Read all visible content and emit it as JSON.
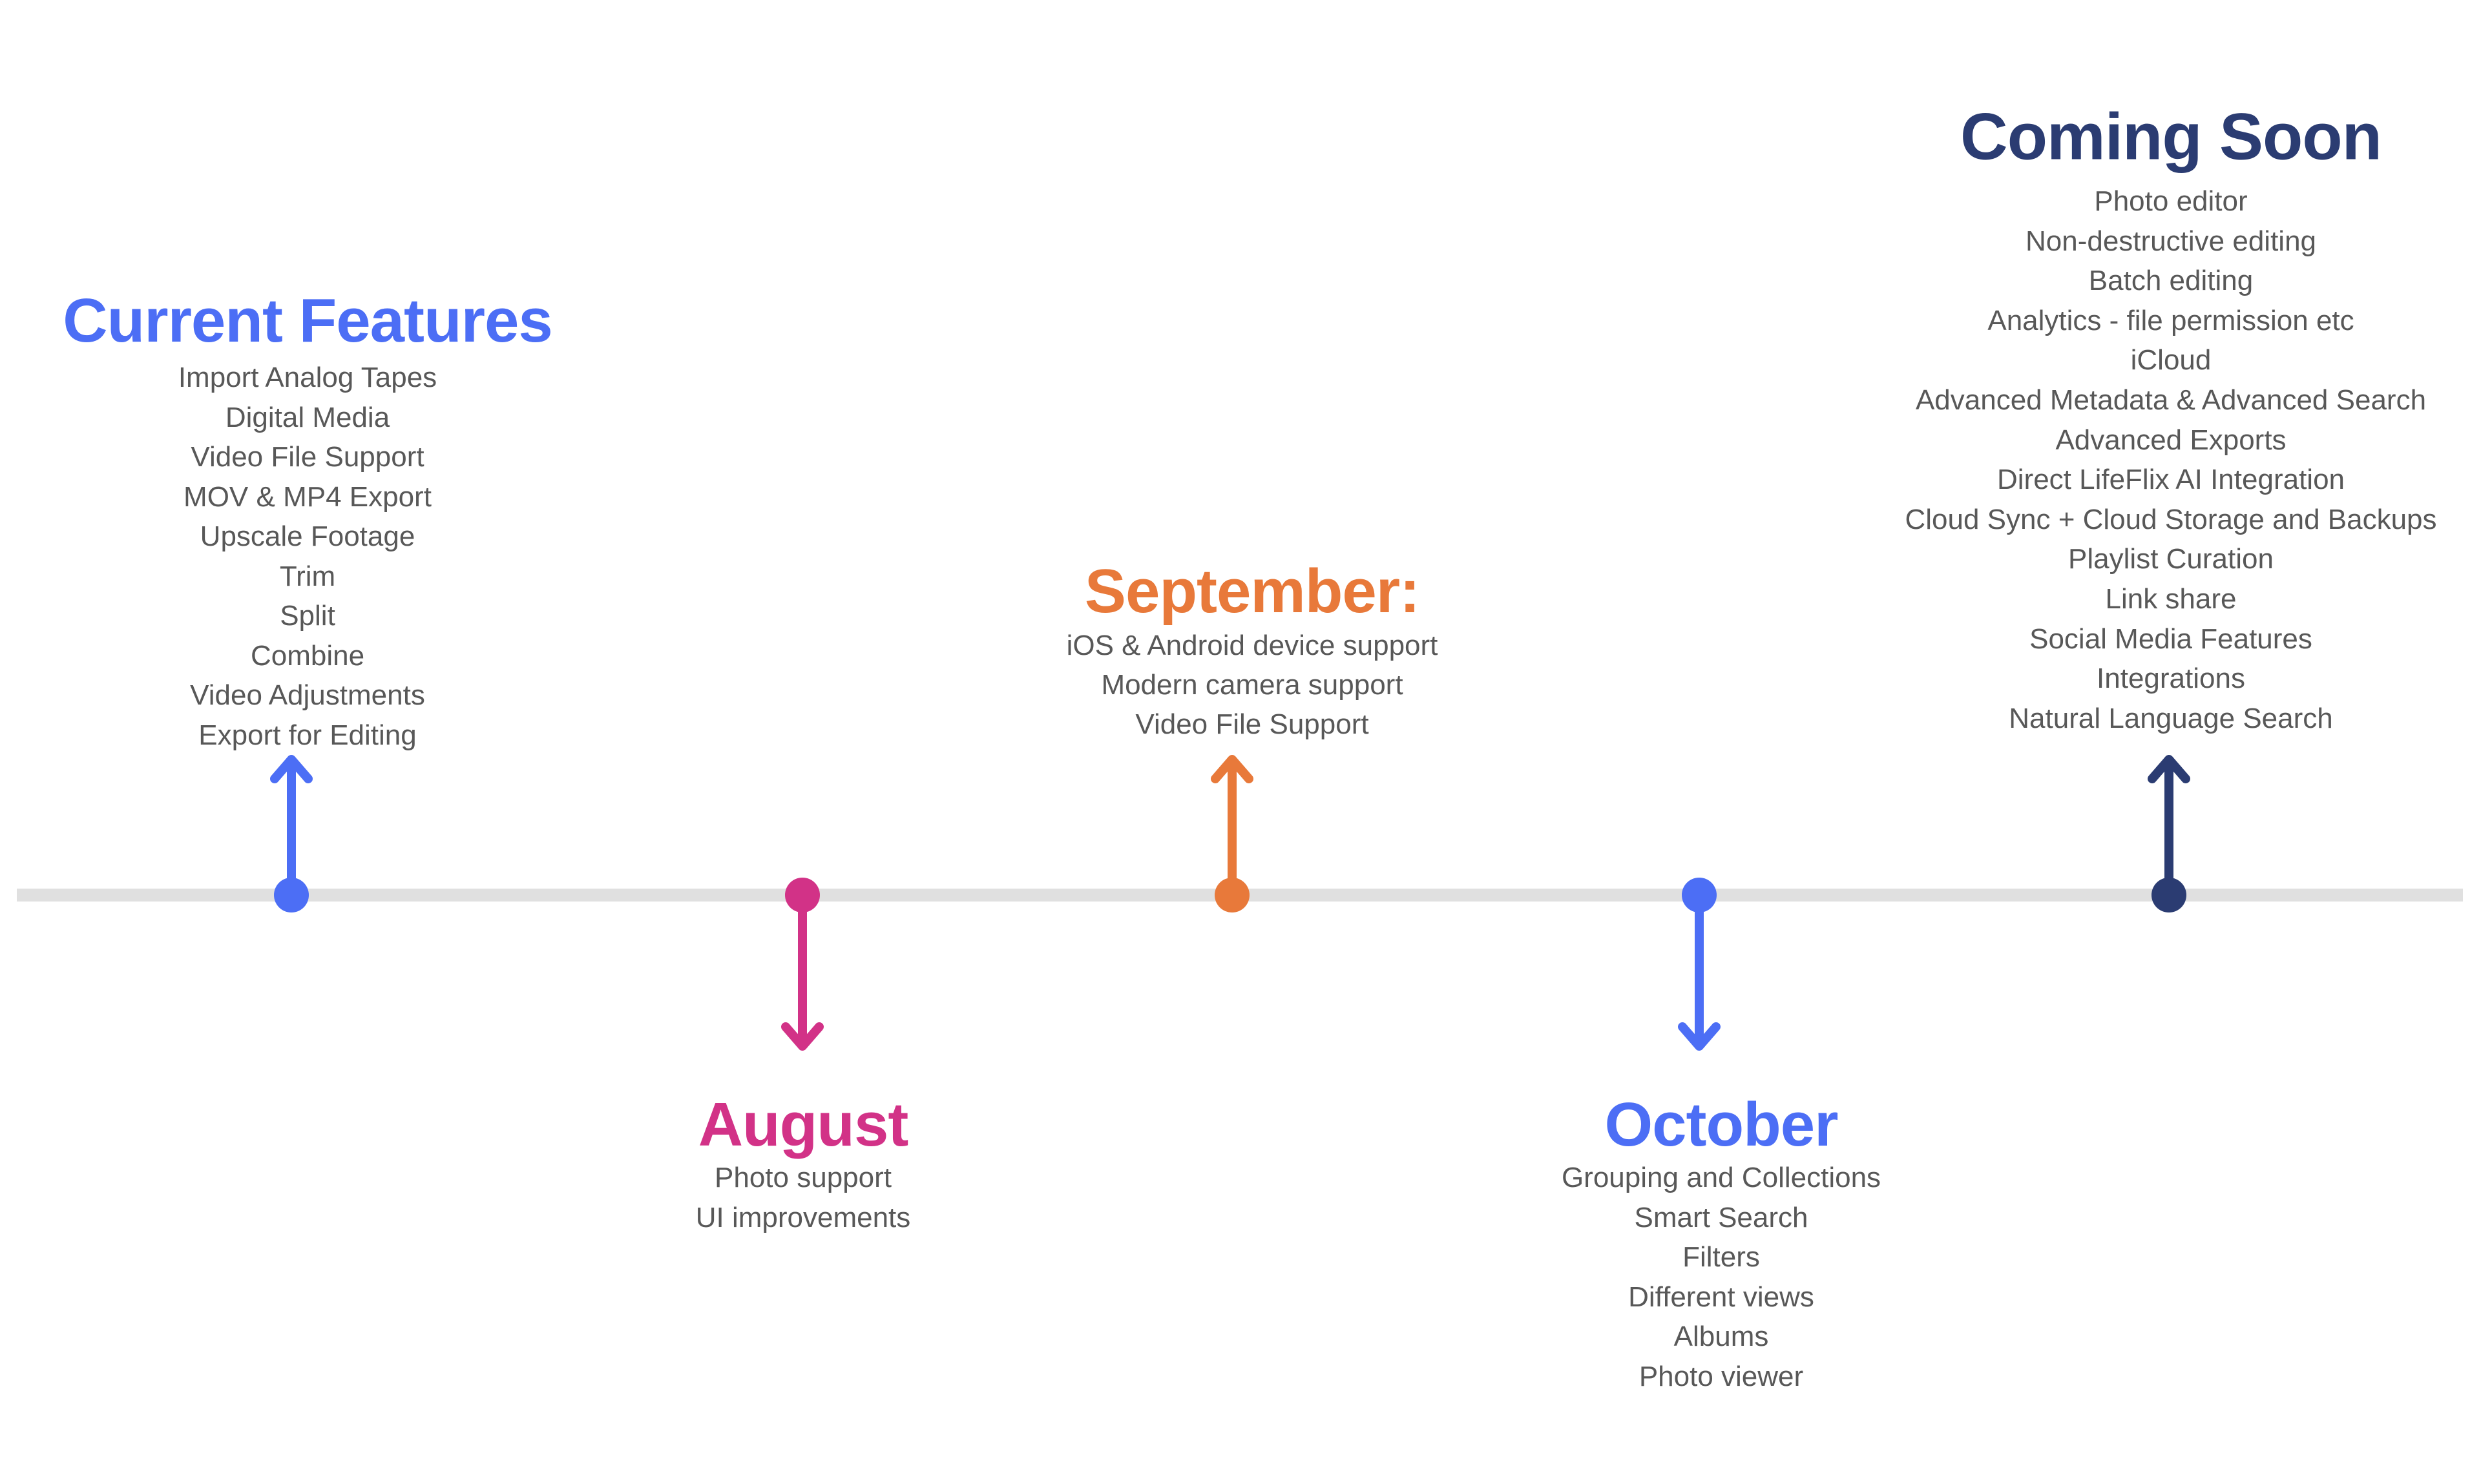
{
  "page_title": "Product roadmap timeline",
  "colors": {
    "blue": "#4c6ef5",
    "pink": "#d23287",
    "orange": "#e8793a",
    "navy": "#2b3c72",
    "body_text": "#585858",
    "timeline_bar": "#e0e0e0",
    "background": "#ffffff"
  },
  "timeline": {
    "bar_color": "#e0e0e0"
  },
  "sections": [
    {
      "id": "current-features",
      "title": "Current Features",
      "color": "#4c6ef5",
      "side": "above",
      "arrow": "up",
      "items": [
        "Import Analog Tapes",
        "Digital Media",
        "Video File Support",
        "MOV & MP4 Export",
        "Upscale Footage",
        "Trim",
        "Split",
        "Combine",
        "Video Adjustments",
        "Export for Editing"
      ]
    },
    {
      "id": "august",
      "title": "August",
      "color": "#d23287",
      "side": "below",
      "arrow": "down",
      "items": [
        "Photo support",
        "UI improvements"
      ]
    },
    {
      "id": "september",
      "title": "September:",
      "color": "#e8793a",
      "side": "above",
      "arrow": "up",
      "items": [
        "iOS & Android device support",
        "Modern camera support",
        "Video File Support"
      ]
    },
    {
      "id": "october",
      "title": "October",
      "color": "#4c6ef5",
      "side": "below",
      "arrow": "down",
      "items": [
        "Grouping and Collections",
        "Smart Search",
        "Filters",
        "Different views",
        "Albums",
        "Photo viewer"
      ]
    },
    {
      "id": "coming-soon",
      "title": "Coming Soon",
      "color": "#2b3c72",
      "side": "above",
      "arrow": "up",
      "items": [
        "Photo editor",
        "Non-destructive editing",
        "Batch editing",
        "Analytics - file permission etc",
        "iCloud",
        "Advanced Metadata & Advanced Search",
        "Advanced Exports",
        "Direct LifeFlix AI Integration",
        "Cloud Sync + Cloud Storage and Backups",
        "Playlist Curation",
        "Link share",
        "Social Media Features",
        "Integrations",
        "Natural Language Search"
      ]
    }
  ]
}
